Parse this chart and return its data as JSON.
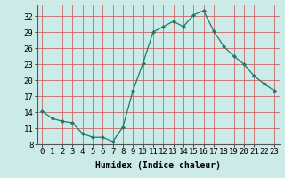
{
  "x": [
    0,
    1,
    2,
    3,
    4,
    5,
    6,
    7,
    8,
    9,
    10,
    11,
    12,
    13,
    14,
    15,
    16,
    17,
    18,
    19,
    20,
    21,
    22,
    23
  ],
  "y": [
    14.2,
    12.8,
    12.3,
    12.0,
    10.0,
    9.3,
    9.3,
    8.5,
    11.2,
    18.0,
    23.2,
    29.0,
    30.0,
    31.0,
    30.0,
    32.2,
    33.0,
    29.2,
    26.3,
    24.5,
    23.0,
    20.8,
    19.3,
    18.0
  ],
  "xlabel": "Humidex (Indice chaleur)",
  "ylim": [
    8,
    34
  ],
  "yticks": [
    8,
    11,
    14,
    17,
    20,
    23,
    26,
    29,
    32
  ],
  "xticks": [
    0,
    1,
    2,
    3,
    4,
    5,
    6,
    7,
    8,
    9,
    10,
    11,
    12,
    13,
    14,
    15,
    16,
    17,
    18,
    19,
    20,
    21,
    22,
    23
  ],
  "line_color": "#1a7a6e",
  "marker": "D",
  "marker_size": 2.0,
  "bg_color": "#cceae8",
  "grid_color": "#cc6666",
  "grid_color_minor": "#ddaaaa",
  "xlabel_fontsize": 7,
  "tick_fontsize": 6.5,
  "spine_color": "#555555"
}
